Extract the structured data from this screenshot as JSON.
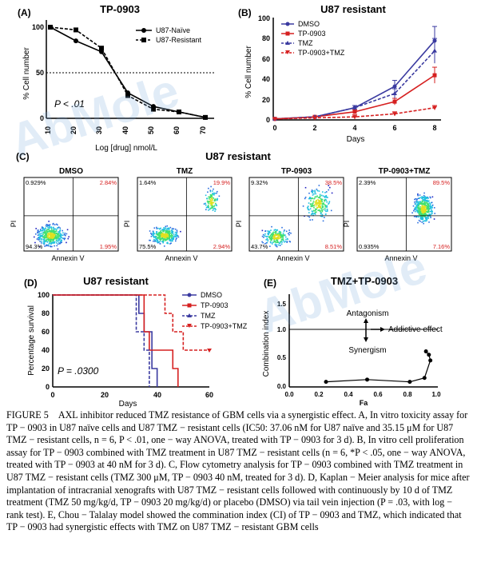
{
  "watermark": "AbMole",
  "panels": {
    "A": {
      "letter": "(A)",
      "title": "TP-0903",
      "xlabel": "Log [drug] nmol/L",
      "ylabel": "% Cell number",
      "legend": [
        "U87-Naïve",
        "U87-Resistant"
      ],
      "annotation": "P < .01",
      "yticks": [
        "100",
        "50",
        "0"
      ],
      "xticks": [
        "10",
        "20",
        "30",
        "40",
        "50",
        "60",
        "70"
      ]
    },
    "B": {
      "letter": "(B)",
      "title": "U87 resistant",
      "xlabel": "Days",
      "ylabel": "% Cell number",
      "legend": [
        "DMSO",
        "TP-0903",
        "TMZ",
        "TP-0903+TMZ"
      ],
      "yticks": [
        "0",
        "20",
        "40",
        "60",
        "80",
        "100"
      ],
      "xticks": [
        "0",
        "2",
        "4",
        "6",
        "8"
      ]
    },
    "C": {
      "letter": "(C)",
      "title": "U87 resistant",
      "ylabel": "PI",
      "xlabel": "Annexin V",
      "plots": [
        {
          "title": "DMSO",
          "ul": "0.929%",
          "ur": "2.84%",
          "ll": "94.3%",
          "lr": "1.95%"
        },
        {
          "title": "TMZ",
          "ul": "1.64%",
          "ur": "19.9%",
          "ll": "75.5%",
          "lr": "2.94%"
        },
        {
          "title": "TP-0903",
          "ul": "9.32%",
          "ur": "38.5%",
          "ll": "43.7%",
          "lr": "8.51%"
        },
        {
          "title": "TP-0903+TMZ",
          "ul": "2.39%",
          "ur": "89.5%",
          "ll": "0.935%",
          "lr": "7.16%"
        }
      ]
    },
    "D": {
      "letter": "(D)",
      "title": "U87 resistant",
      "xlabel": "Days",
      "ylabel": "Percentage survival",
      "legend": [
        "DMSO",
        "TP-0903",
        "TMZ",
        "TP-0903+TMZ"
      ],
      "annotation": "P = .0300",
      "yticks": [
        "0",
        "20",
        "40",
        "60",
        "80",
        "100"
      ],
      "xticks": [
        "0",
        "20",
        "40",
        "60"
      ]
    },
    "E": {
      "letter": "(E)",
      "title": "TMZ+TP-0903",
      "xlabel": "Fa",
      "ylabel": "Combination index",
      "labels": {
        "antagonism": "Antagonism",
        "additive": "Addictive effect",
        "synergism": "Synergism"
      },
      "yticks": [
        "0.0",
        "0.5",
        "1.0",
        "1.5"
      ],
      "xticks": [
        "0.0",
        "0.2",
        "0.4",
        "0.6",
        "0.8",
        "1.0"
      ]
    }
  },
  "chart_data": [
    {
      "type": "line",
      "panel": "A",
      "title": "TP-0903",
      "xlabel": "Log [drug] nmol/L",
      "ylabel": "% Cell number",
      "x": [
        10,
        20,
        30,
        40,
        50,
        60,
        70
      ],
      "ylim": [
        0,
        100
      ],
      "reference_line_y": 50,
      "series": [
        {
          "name": "U87-Naïve",
          "values": [
            100,
            85,
            73,
            28,
            13,
            7,
            1
          ]
        },
        {
          "name": "U87-Resistant",
          "values": [
            100,
            97,
            77,
            25,
            10,
            7,
            1
          ]
        }
      ]
    },
    {
      "type": "line",
      "panel": "B",
      "title": "U87 resistant",
      "xlabel": "Days",
      "ylabel": "% Cell number",
      "x": [
        0,
        2,
        4,
        6,
        8
      ],
      "ylim": [
        0,
        100
      ],
      "series": [
        {
          "name": "DMSO",
          "values": [
            1,
            3,
            12,
            33,
            78
          ]
        },
        {
          "name": "TP-0903",
          "values": [
            1,
            3,
            8,
            18,
            44
          ]
        },
        {
          "name": "TMZ",
          "values": [
            1,
            3,
            12,
            26,
            68
          ]
        },
        {
          "name": "TP-0903+TMZ",
          "values": [
            1,
            2,
            3,
            6,
            12
          ]
        }
      ]
    },
    {
      "type": "line",
      "panel": "D",
      "title": "U87 resistant",
      "xlabel": "Days",
      "ylabel": "Percentage survival",
      "xlim": [
        0,
        60
      ],
      "ylim": [
        0,
        100
      ],
      "series": [
        {
          "name": "DMSO",
          "steps": [
            [
              0,
              100
            ],
            [
              33,
              100
            ],
            [
              33,
              80
            ],
            [
              35,
              80
            ],
            [
              35,
              60
            ],
            [
              38,
              60
            ],
            [
              38,
              20
            ],
            [
              40,
              20
            ],
            [
              40,
              0
            ]
          ]
        },
        {
          "name": "TP-0903",
          "steps": [
            [
              0,
              100
            ],
            [
              35,
              100
            ],
            [
              35,
              60
            ],
            [
              37,
              60
            ],
            [
              37,
              40
            ],
            [
              46,
              40
            ],
            [
              46,
              20
            ],
            [
              48,
              20
            ],
            [
              48,
              0
            ]
          ]
        },
        {
          "name": "TMZ",
          "steps": [
            [
              0,
              100
            ],
            [
              32,
              100
            ],
            [
              32,
              60
            ],
            [
              35,
              60
            ],
            [
              35,
              40
            ],
            [
              37,
              40
            ],
            [
              37,
              0
            ]
          ]
        },
        {
          "name": "TP-0903+TMZ",
          "steps": [
            [
              0,
              100
            ],
            [
              43,
              100
            ],
            [
              43,
              80
            ],
            [
              46,
              80
            ],
            [
              46,
              60
            ],
            [
              50,
              60
            ],
            [
              50,
              40
            ],
            [
              60,
              40
            ]
          ]
        }
      ]
    },
    {
      "type": "scatter",
      "panel": "E",
      "title": "TMZ+TP-0903",
      "xlabel": "Fa",
      "ylabel": "Combination index",
      "xlim": [
        0,
        1
      ],
      "ylim": [
        0,
        1.8
      ],
      "reference_line_y": 1.0,
      "points": [
        [
          0.25,
          0.09
        ],
        [
          0.53,
          0.13
        ],
        [
          0.82,
          0.09
        ],
        [
          0.92,
          0.16
        ],
        [
          0.93,
          0.63
        ],
        [
          0.95,
          0.57
        ],
        [
          0.96,
          0.47
        ]
      ]
    }
  ],
  "caption": {
    "label": "FIGURE 5",
    "text": "AXL inhibitor reduced TMZ resistance of GBM cells via a synergistic effect. A, In vitro toxicity assay for TP − 0903 in U87 naïve cells and U87 TMZ − resistant cells (IC50: 37.06 nM for U87 naïve and 35.15 μM for U87 TMZ − resistant cells, n = 6, P < .01, one − way ANOVA, treated with TP − 0903 for 3 d). B, In vitro cell proliferation assay for TP − 0903 combined with TMZ treatment in U87 TMZ − resistant cells (n = 6, *P < .05, one − way ANOVA, treated with TP − 0903 at 40 nM for 3 d). C, Flow cytometry analysis for TP − 0903 combined with TMZ treatment in U87 TMZ − resistant cells (TMZ 300 μM, TP − 0903 40 nM, treated for 3 d). D, Kaplan − Meier analysis for mice after implantation of intracranial xenografts with U87 TMZ − resistant cells followed with continuously by 10 d of TMZ treatment (TMZ 50 mg/kg/d, TP − 0903 20 mg/kg/d) or placebo (DMSO) via tail vein injection (P = .03, with log − rank test). E, Chou − Talalay model showed the commination index (CI) of TP − 0903 and TMZ, which indicated that TP − 0903 had synergistic effects with TMZ on U87 TMZ − resistant GBM cells"
  }
}
